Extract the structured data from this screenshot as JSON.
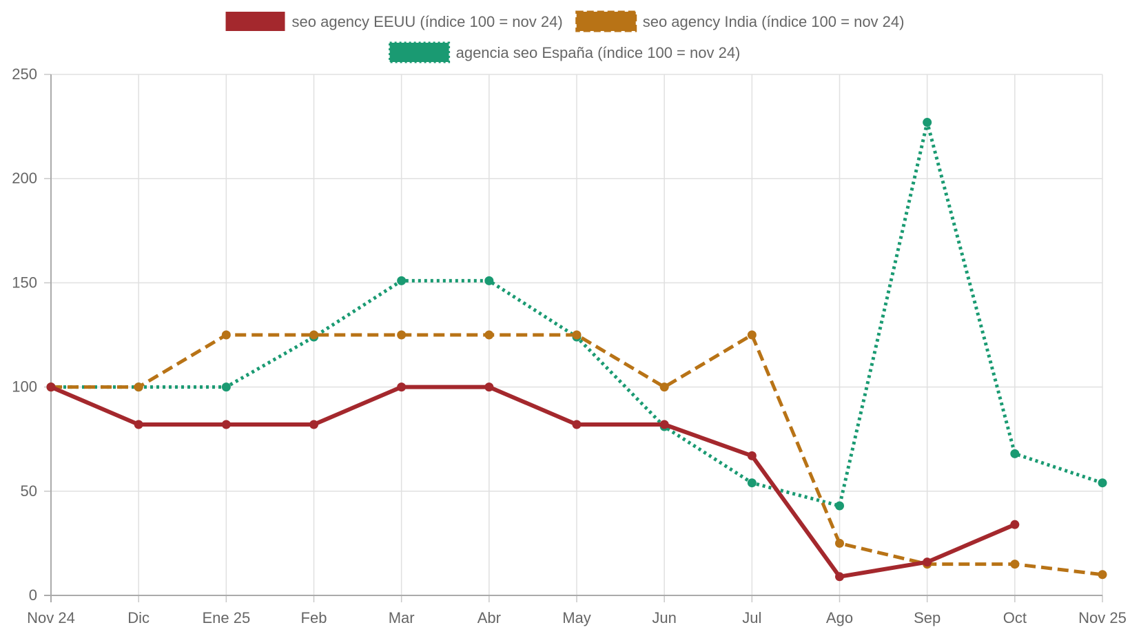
{
  "chart_data": {
    "type": "line",
    "categories": [
      "Nov 24",
      "Dic",
      "Ene 25",
      "Feb",
      "Mar",
      "Abr",
      "May",
      "Jun",
      "Jul",
      "Ago",
      "Sep",
      "Oct",
      "Nov 25"
    ],
    "ylim": [
      0,
      250
    ],
    "yticks": [
      0,
      50,
      100,
      150,
      200,
      250
    ],
    "grid": true,
    "legend_position": "top-center",
    "series": [
      {
        "name": "seo agency EEUU (índice 100 = nov 24)",
        "color": "#a4282d",
        "line_style": "solid",
        "values": [
          100,
          82,
          82,
          82,
          100,
          100,
          82,
          82,
          67,
          9,
          16,
          34,
          null
        ]
      },
      {
        "name": "seo agency India (índice 100 = nov 24)",
        "color": "#b87316",
        "line_style": "dashed",
        "values": [
          100,
          100,
          125,
          125,
          125,
          125,
          125,
          100,
          125,
          25,
          15,
          15,
          10
        ]
      },
      {
        "name": "agencia seo España (índice 100 = nov 24)",
        "color": "#1a9a72",
        "line_style": "dotted",
        "values": [
          100,
          100,
          100,
          124,
          151,
          151,
          124,
          81,
          54,
          43,
          227,
          68,
          54
        ]
      }
    ]
  }
}
